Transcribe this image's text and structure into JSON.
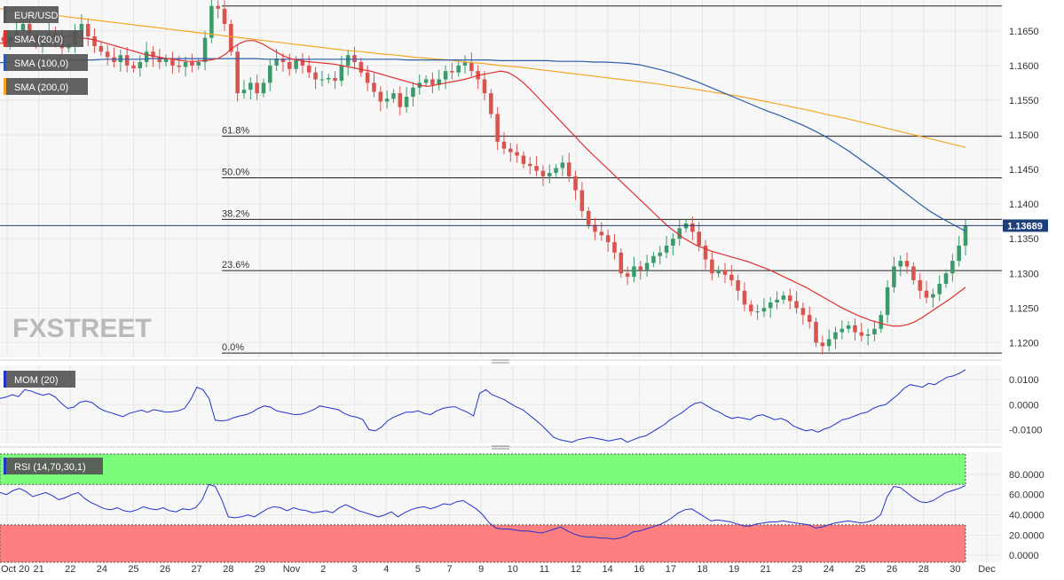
{
  "chart_data": [
    {
      "type": "candlestick",
      "symbol": "EUR/USD",
      "legend": [
        "EUR/USD",
        "SMA (20,0)",
        "SMA (100,0)",
        "SMA (200,0)"
      ],
      "legend_colors": [
        "#555555",
        "#e03030",
        "#2a5caa",
        "#f5a623"
      ],
      "ylim": [
        1.118,
        1.1692
      ],
      "y_ticks": [
        "1.1650",
        "1.1600",
        "1.1550",
        "1.1500",
        "1.1450",
        "1.1400",
        "1.1350",
        "1.1300",
        "1.1250",
        "1.1200"
      ],
      "last_price": "1.13689",
      "last_price_value": 1.13689,
      "fib_levels": [
        {
          "label": "61.8%",
          "value": 1.1498
        },
        {
          "label": "50.0%",
          "value": 1.1438
        },
        {
          "label": "38.2%",
          "value": 1.1378
        },
        {
          "label": "23.6%",
          "value": 1.1304
        },
        {
          "label": "0.0%",
          "value": 1.1185
        }
      ],
      "top_level": 1.1686,
      "candles_close": [
        1.1635,
        1.164,
        1.165,
        1.166,
        1.1645,
        1.163,
        1.1635,
        1.1648,
        1.164,
        1.1625,
        1.163,
        1.165,
        1.166,
        1.1642,
        1.1628,
        1.162,
        1.1612,
        1.1605,
        1.1615,
        1.16,
        1.1596,
        1.1605,
        1.162,
        1.1612,
        1.1605,
        1.161,
        1.16,
        1.1598,
        1.1605,
        1.16,
        1.1605,
        1.164,
        1.1686,
        1.1682,
        1.166,
        1.162,
        1.156,
        1.1565,
        1.1575,
        1.156,
        1.1575,
        1.16,
        1.161,
        1.1605,
        1.1595,
        1.1608,
        1.16,
        1.159,
        1.158,
        1.158,
        1.1582,
        1.1578,
        1.16,
        1.1615,
        1.1605,
        1.159,
        1.1575,
        1.1562,
        1.1548,
        1.1552,
        1.156,
        1.154,
        1.1555,
        1.1568,
        1.1575,
        1.158,
        1.1572,
        1.158,
        1.1592,
        1.159,
        1.16,
        1.1605,
        1.1592,
        1.158,
        1.156,
        1.153,
        1.149,
        1.148,
        1.1475,
        1.147,
        1.1458,
        1.1455,
        1.1448,
        1.144,
        1.1445,
        1.1452,
        1.146,
        1.144,
        1.142,
        1.139,
        1.137,
        1.136,
        1.1355,
        1.1345,
        1.133,
        1.13,
        1.1295,
        1.131,
        1.1305,
        1.1315,
        1.1325,
        1.133,
        1.134,
        1.135,
        1.1365,
        1.1372,
        1.136,
        1.134,
        1.132,
        1.13,
        1.1305,
        1.1298,
        1.129,
        1.1275,
        1.1255,
        1.1245,
        1.1245,
        1.125,
        1.1258,
        1.1262,
        1.1268,
        1.126,
        1.125,
        1.124,
        1.123,
        1.12,
        1.1195,
        1.1205,
        1.1215,
        1.122,
        1.1225,
        1.1215,
        1.121,
        1.1212,
        1.122,
        1.124,
        1.128,
        1.131,
        1.1318,
        1.131,
        1.129,
        1.1275,
        1.1265,
        1.127,
        1.1285,
        1.13,
        1.1318,
        1.134,
        1.13689
      ],
      "sma20": [
        1.1632,
        1.1634,
        1.1636,
        1.1638,
        1.1639,
        1.164,
        1.1641,
        1.1642,
        1.1642,
        1.1642,
        1.1641,
        1.164,
        1.1639,
        1.1637,
        1.1634,
        1.1631,
        1.1628,
        1.1625,
        1.1622,
        1.1619,
        1.1616,
        1.1614,
        1.1612,
        1.161,
        1.1609,
        1.1607,
        1.1606,
        1.1606,
        1.1607,
        1.1608,
        1.161,
        1.1616,
        1.1625,
        1.1632,
        1.1636,
        1.1636,
        1.1632,
        1.1626,
        1.162,
        1.1614,
        1.161,
        1.1608,
        1.1606,
        1.1605,
        1.1604,
        1.1603,
        1.1602,
        1.16,
        1.1598,
        1.1596,
        1.1594,
        1.1592,
        1.1589,
        1.1586,
        1.1583,
        1.158,
        1.1577,
        1.1574,
        1.1571,
        1.157,
        1.1572,
        1.1574,
        1.1576,
        1.1578,
        1.158,
        1.1583,
        1.1586,
        1.1588,
        1.159,
        1.1592,
        1.159,
        1.1584,
        1.1576,
        1.1566,
        1.1555,
        1.1544,
        1.1533,
        1.1522,
        1.1511,
        1.15,
        1.1489,
        1.1478,
        1.1468,
        1.1458,
        1.1448,
        1.1438,
        1.1428,
        1.1418,
        1.1408,
        1.1398,
        1.1388,
        1.1378,
        1.1368,
        1.136,
        1.1352,
        1.1346,
        1.134,
        1.1336,
        1.1332,
        1.1329,
        1.1326,
        1.1323,
        1.132,
        1.1317,
        1.1313,
        1.1309,
        1.1305,
        1.13,
        1.1295,
        1.129,
        1.1285,
        1.128,
        1.1274,
        1.1268,
        1.1262,
        1.1256,
        1.125,
        1.1245,
        1.124,
        1.1236,
        1.1232,
        1.1229,
        1.1226,
        1.1224,
        1.1224,
        1.1226,
        1.123,
        1.1236,
        1.1243,
        1.125,
        1.1257,
        1.1264,
        1.1272,
        1.128
      ],
      "sma100": [
        1.1604,
        1.1605,
        1.1606,
        1.1606,
        1.1607,
        1.1607,
        1.1608,
        1.1608,
        1.1608,
        1.1609,
        1.1609,
        1.1609,
        1.1609,
        1.161,
        1.161,
        1.161,
        1.161,
        1.161,
        1.161,
        1.161,
        1.161,
        1.161,
        1.161,
        1.1609,
        1.1609,
        1.1609,
        1.1609,
        1.1609,
        1.1609,
        1.1609,
        1.1609,
        1.1609,
        1.1609,
        1.1609,
        1.1609,
        1.1608,
        1.1608,
        1.1608,
        1.1608,
        1.1608,
        1.1608,
        1.1608,
        1.1608,
        1.1607,
        1.1607,
        1.1607,
        1.1607,
        1.1607,
        1.1606,
        1.1606,
        1.1606,
        1.1605,
        1.1605,
        1.1604,
        1.1603,
        1.1601,
        1.1597,
        1.1593,
        1.1588,
        1.1582,
        1.1576,
        1.1569,
        1.1562,
        1.1555,
        1.1548,
        1.1541,
        1.1534,
        1.1528,
        1.1521,
        1.1514,
        1.1506,
        1.1497,
        1.1487,
        1.1476,
        1.1464,
        1.1452,
        1.144,
        1.1427,
        1.1414,
        1.1401,
        1.1389,
        1.1379,
        1.137,
        1.1361
      ],
      "sma200": [
        1.1682,
        1.1679,
        1.1676,
        1.1673,
        1.167,
        1.1667,
        1.1664,
        1.1661,
        1.1658,
        1.1655,
        1.1652,
        1.1649,
        1.1646,
        1.1643,
        1.164,
        1.1637,
        1.1634,
        1.1631,
        1.1628,
        1.1625,
        1.1622,
        1.162,
        1.1617,
        1.1615,
        1.1612,
        1.161,
        1.1608,
        1.1605,
        1.1603,
        1.16,
        1.1598,
        1.1595,
        1.1592,
        1.1589,
        1.1586,
        1.1583,
        1.158,
        1.1577,
        1.1574,
        1.157,
        1.1567,
        1.1563,
        1.1559,
        1.1555,
        1.155,
        1.1545,
        1.154,
        1.1535,
        1.1529,
        1.1524,
        1.1518,
        1.1512,
        1.1506,
        1.15,
        1.1494,
        1.1488,
        1.1482
      ]
    },
    {
      "type": "line",
      "legend": "MOM (20)",
      "ylim": [
        -0.0155,
        0.015
      ],
      "y_ticks": [
        "0.0100",
        "0.0000",
        "-0.0100"
      ],
      "color": "#2233cc",
      "values": [
        0.0025,
        0.003,
        0.004,
        0.0032,
        0.006,
        0.0055,
        0.0045,
        0.0038,
        0.0044,
        0.003,
        0.0005,
        -0.0015,
        -0.001,
        0.001,
        0.0015,
        0.0008,
        -0.0012,
        -0.0025,
        -0.0032,
        -0.004,
        -0.0048,
        -0.0035,
        -0.0028,
        -0.0022,
        -0.003,
        -0.002,
        -0.0025,
        -0.003,
        -0.0028,
        -0.0025,
        -0.0015,
        0.002,
        0.007,
        0.006,
        0.0025,
        -0.0062,
        -0.0065,
        -0.0062,
        -0.0052,
        -0.0045,
        -0.004,
        -0.003,
        -0.0015,
        -0.0005,
        -0.001,
        -0.0025,
        -0.003,
        -0.0035,
        -0.004,
        -0.0038,
        -0.003,
        -0.002,
        -0.0005,
        -0.001,
        -0.0015,
        -0.002,
        -0.0035,
        -0.0045,
        -0.005,
        -0.006,
        -0.01,
        -0.0105,
        -0.009,
        -0.0065,
        -0.005,
        -0.004,
        -0.003,
        -0.003,
        -0.0025,
        -0.0035,
        -0.004,
        -0.0025,
        -0.0015,
        -0.001,
        -0.0008,
        -0.002,
        -0.003,
        -0.0045,
        0.0045,
        0.006,
        0.004,
        0.003,
        0.002,
        0.0005,
        -0.001,
        -0.002,
        -0.004,
        -0.006,
        -0.008,
        -0.0105,
        -0.013,
        -0.014,
        -0.0145,
        -0.015,
        -0.014,
        -0.0135,
        -0.013,
        -0.0135,
        -0.014,
        -0.0145,
        -0.014,
        -0.0135,
        -0.015,
        -0.014,
        -0.013,
        -0.0125,
        -0.011,
        -0.0095,
        -0.008,
        -0.006,
        -0.0045,
        -0.003,
        -0.001,
        0.0005,
        0.001,
        -0.0005,
        -0.002,
        -0.003,
        -0.0045,
        -0.0055,
        -0.005,
        -0.0055,
        -0.006,
        -0.0045,
        -0.004,
        -0.005,
        -0.006,
        -0.0055,
        -0.0065,
        -0.0085,
        -0.0095,
        -0.0105,
        -0.01,
        -0.011,
        -0.0098,
        -0.009,
        -0.0075,
        -0.006,
        -0.0055,
        -0.0045,
        -0.0035,
        -0.003,
        -0.0015,
        -0.0005,
        0.0,
        0.002,
        0.004,
        0.0065,
        0.008,
        0.0075,
        0.007,
        0.0085,
        0.008,
        0.0095,
        0.011,
        0.0115,
        0.0125,
        0.014
      ]
    },
    {
      "type": "line",
      "legend": "RSI (14,70,30,1)",
      "ylim": [
        0,
        100
      ],
      "y_ticks": [
        "80.0000",
        "60.0000",
        "40.0000",
        "20.0000",
        "0.0000"
      ],
      "overbought": 70,
      "oversold": 30,
      "color": "#2233cc",
      "values": [
        62,
        60,
        64,
        66,
        63,
        58,
        60,
        62,
        59,
        55,
        57,
        60,
        62,
        56,
        52,
        49,
        46,
        45,
        47,
        44,
        43,
        45,
        48,
        46,
        45,
        47,
        44,
        43,
        46,
        45,
        47,
        55,
        70,
        68,
        55,
        38,
        37,
        38,
        40,
        38,
        42,
        46,
        48,
        47,
        44,
        47,
        45,
        44,
        42,
        43,
        44,
        42,
        47,
        50,
        47,
        44,
        42,
        40,
        38,
        40,
        43,
        38,
        42,
        45,
        47,
        48,
        46,
        48,
        51,
        50,
        53,
        54,
        50,
        46,
        40,
        32,
        27,
        26,
        26,
        25,
        24,
        24,
        23,
        22,
        24,
        26,
        28,
        24,
        21,
        19,
        18,
        18,
        17,
        17,
        16,
        17,
        19,
        23,
        24,
        26,
        28,
        30,
        33,
        37,
        42,
        45,
        46,
        42,
        38,
        34,
        35,
        34,
        33,
        31,
        29,
        29,
        31,
        32,
        33,
        33,
        34,
        33,
        32,
        31,
        30,
        27,
        28,
        30,
        32,
        33,
        34,
        33,
        32,
        33,
        35,
        40,
        58,
        68,
        67,
        62,
        57,
        53,
        52,
        54,
        58,
        62,
        64,
        66,
        69
      ]
    },
    {
      "type": "axis",
      "x_labels": [
        "Oct 20",
        "21",
        "22",
        "24",
        "25",
        "26",
        "27",
        "28",
        "29",
        "Nov",
        "2",
        "3",
        "4",
        "5",
        "7",
        "9",
        "10",
        "11",
        "12",
        "14",
        "16",
        "17",
        "18",
        "19",
        "21",
        "23",
        "24",
        "25",
        "26",
        "28",
        "30",
        "Dec"
      ]
    }
  ],
  "brand": "FXSTREET"
}
